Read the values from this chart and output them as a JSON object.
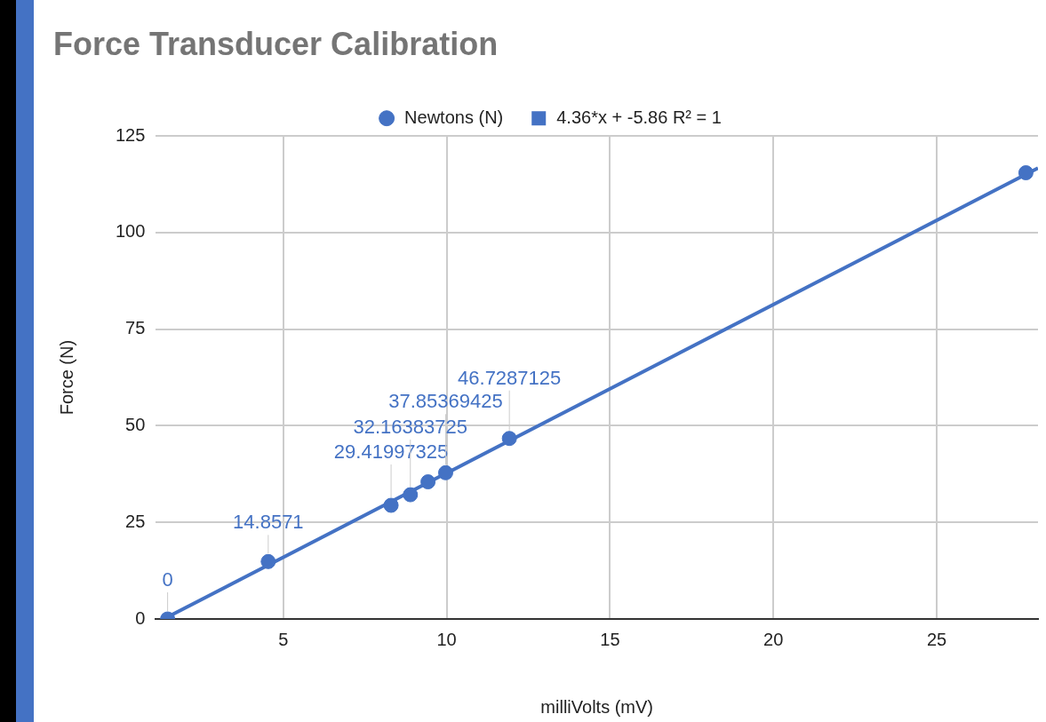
{
  "chart_data": {
    "type": "scatter",
    "title": "Force Transducer Calibration",
    "xlabel": "milliVolts (mV)",
    "ylabel": "Force (N)",
    "xlim": [
      1.1,
      28.1
    ],
    "xticks": [
      5,
      10,
      15,
      20,
      25
    ],
    "ylim": [
      0,
      125
    ],
    "yticks": [
      0,
      25,
      50,
      75,
      100,
      125
    ],
    "grid": true,
    "legend": "top",
    "marker": "circle",
    "series": [
      {
        "name": "Newtons (N)",
        "type": "scatter",
        "color": "#4472c4",
        "x": [
          1.46,
          4.54,
          8.3,
          8.89,
          9.43,
          9.97,
          11.92,
          27.73
        ],
        "values": [
          0,
          14.8571,
          29.41997325,
          32.16383725,
          35.5,
          37.85369425,
          46.7287125,
          115.5
        ],
        "value_labels": [
          "0",
          "14.8571",
          "29.41997325",
          "32.16383725",
          null,
          "37.85369425",
          "46.7287125",
          null
        ]
      },
      {
        "name": "4.36*x + -5.86 R² = 1",
        "type": "line",
        "marker": "none",
        "color": "#4472c4",
        "x": [
          1.34,
          28.1
        ],
        "values": [
          0,
          116.7
        ]
      }
    ]
  }
}
